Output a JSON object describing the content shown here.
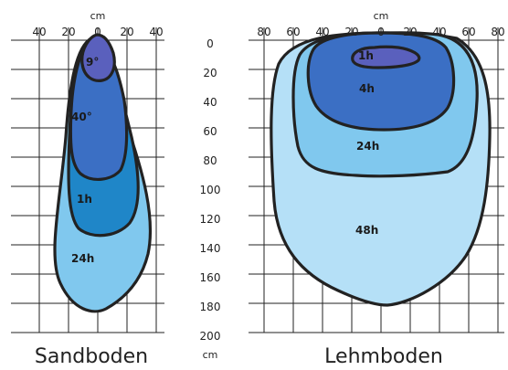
{
  "diagram": {
    "y_axis": {
      "unit": "cm",
      "ticks": [
        "0",
        "20",
        "40",
        "60",
        "80",
        "100",
        "120",
        "140",
        "160",
        "180",
        "200"
      ]
    },
    "left_panel": {
      "title": "Sandboden",
      "x_unit": "cm",
      "x_ticks": [
        "40",
        "20",
        "0",
        "20",
        "40"
      ],
      "zones": [
        {
          "label": "9°",
          "color": "#5a60bd"
        },
        {
          "label": "40°",
          "color": "#3b6fc4"
        },
        {
          "label": "1h",
          "color": "#1f86c8"
        },
        {
          "label": "24h",
          "color": "#80c8ee"
        }
      ]
    },
    "right_panel": {
      "title": "Lehmboden",
      "x_unit": "cm",
      "x_ticks": [
        "80",
        "60",
        "40",
        "20",
        "0",
        "20",
        "40",
        "60",
        "80"
      ],
      "zones": [
        {
          "label": "1h",
          "color": "#5a60bd"
        },
        {
          "label": "4h",
          "color": "#3b6fc4"
        },
        {
          "label": "24h",
          "color": "#80c8ee"
        },
        {
          "label": "48h",
          "color": "#b5e0f7"
        }
      ]
    }
  }
}
